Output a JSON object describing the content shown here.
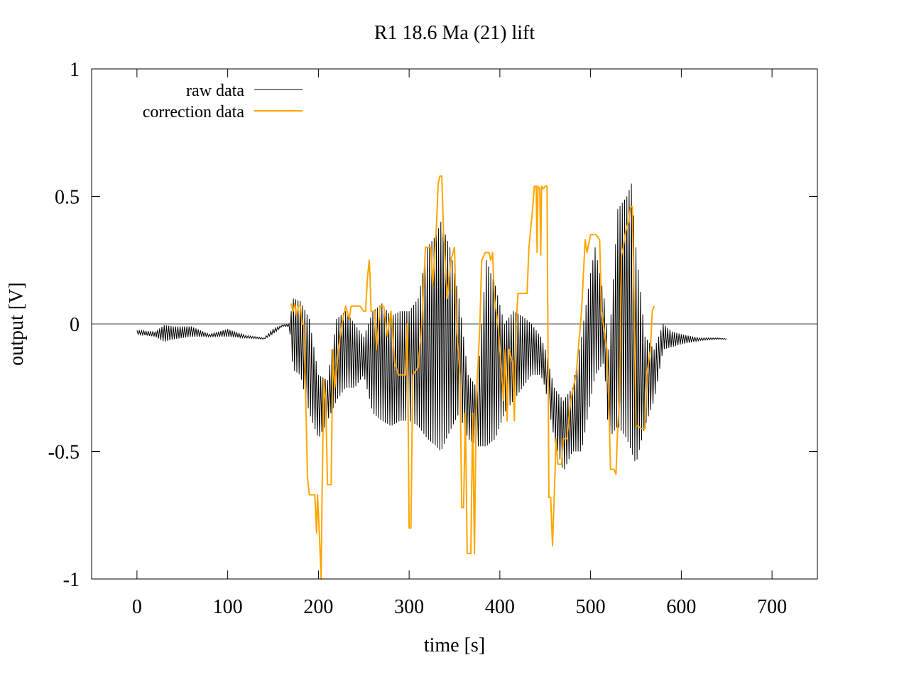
{
  "chart_data": {
    "type": "line",
    "title": "R1 18.6  Ma (21) lift",
    "xlabel": "time [s]",
    "ylabel": "output [V]",
    "xlim": [
      -50,
      750
    ],
    "ylim": [
      -1,
      1
    ],
    "xticks": [
      0,
      100,
      200,
      300,
      400,
      500,
      600,
      700
    ],
    "xtick_labels": [
      "0",
      "100",
      "200",
      "300",
      "400",
      "500",
      "600",
      "700"
    ],
    "yticks": [
      -1,
      -0.5,
      0,
      0.5,
      1
    ],
    "ytick_labels": [
      "-1",
      "-0.5",
      "0",
      "0.5",
      "1"
    ],
    "legend_position": "top-left",
    "zero_line": {
      "y": 0,
      "color": "#a0a0a0"
    },
    "series": [
      {
        "name": "raw data",
        "color": "#000000",
        "envelope": [
          [
            0,
            -0.025,
            -0.04
          ],
          [
            20,
            -0.03,
            -0.05
          ],
          [
            30,
            -0.005,
            -0.07
          ],
          [
            40,
            -0.01,
            -0.06
          ],
          [
            60,
            -0.01,
            -0.05
          ],
          [
            80,
            -0.04,
            -0.05
          ],
          [
            100,
            -0.02,
            -0.05
          ],
          [
            120,
            -0.045,
            -0.055
          ],
          [
            140,
            -0.055,
            -0.06
          ],
          [
            150,
            -0.02,
            -0.04
          ],
          [
            160,
            -0.005,
            -0.01
          ],
          [
            168,
            0.0,
            -0.01
          ],
          [
            172,
            0.1,
            -0.18
          ],
          [
            180,
            0.09,
            -0.2
          ],
          [
            190,
            0.02,
            -0.35
          ],
          [
            200,
            -0.2,
            -0.45
          ],
          [
            210,
            -0.22,
            -0.38
          ],
          [
            220,
            0.02,
            -0.3
          ],
          [
            230,
            0.05,
            -0.25
          ],
          [
            240,
            0.0,
            -0.25
          ],
          [
            250,
            -0.05,
            -0.2
          ],
          [
            260,
            0.05,
            -0.35
          ],
          [
            270,
            0.08,
            -0.38
          ],
          [
            280,
            0.03,
            -0.4
          ],
          [
            290,
            0.05,
            -0.38
          ],
          [
            300,
            0.05,
            -0.38
          ],
          [
            310,
            0.1,
            -0.4
          ],
          [
            320,
            0.3,
            -0.45
          ],
          [
            330,
            0.35,
            -0.48
          ],
          [
            335,
            0.4,
            -0.5
          ],
          [
            345,
            0.3,
            -0.42
          ],
          [
            355,
            0.1,
            -0.35
          ],
          [
            365,
            -0.2,
            -0.45
          ],
          [
            375,
            -0.25,
            -0.48
          ],
          [
            385,
            0.25,
            -0.48
          ],
          [
            395,
            0.15,
            -0.45
          ],
          [
            405,
            0.0,
            -0.35
          ],
          [
            415,
            0.05,
            -0.3
          ],
          [
            425,
            0.03,
            -0.25
          ],
          [
            435,
            0.0,
            -0.2
          ],
          [
            445,
            -0.05,
            -0.2
          ],
          [
            450,
            -0.1,
            -0.25
          ],
          [
            460,
            -0.25,
            -0.45
          ],
          [
            470,
            -0.3,
            -0.58
          ],
          [
            480,
            -0.25,
            -0.5
          ],
          [
            490,
            -0.05,
            -0.5
          ],
          [
            500,
            0.2,
            -0.3
          ],
          [
            505,
            0.3,
            -0.2
          ],
          [
            515,
            0.1,
            -0.15
          ],
          [
            520,
            -0.1,
            -0.45
          ],
          [
            530,
            0.45,
            -0.4
          ],
          [
            540,
            0.5,
            -0.45
          ],
          [
            545,
            0.55,
            -0.5
          ],
          [
            550,
            0.3,
            -0.55
          ],
          [
            560,
            -0.05,
            -0.4
          ],
          [
            570,
            -0.1,
            -0.3
          ],
          [
            580,
            0.0,
            -0.1
          ],
          [
            590,
            -0.03,
            -0.09
          ],
          [
            600,
            -0.04,
            -0.08
          ],
          [
            620,
            -0.055,
            -0.065
          ],
          [
            640,
            -0.055,
            -0.06
          ],
          [
            650,
            -0.058,
            -0.06
          ]
        ]
      },
      {
        "name": "correction data",
        "color": "#ffa500",
        "points": [
          [
            170,
            0.08
          ],
          [
            172,
            0.05
          ],
          [
            174,
            0.08
          ],
          [
            176,
            0.03
          ],
          [
            178,
            0.07
          ],
          [
            180,
            0.07
          ],
          [
            182,
            0.0
          ],
          [
            184,
            0.0
          ],
          [
            186,
            -0.3
          ],
          [
            188,
            -0.6
          ],
          [
            190,
            -0.67
          ],
          [
            196,
            -0.67
          ],
          [
            198,
            -0.82
          ],
          [
            199,
            -0.67
          ],
          [
            201,
            -0.82
          ],
          [
            203,
            -1.0
          ],
          [
            204,
            -0.67
          ],
          [
            206,
            -0.22
          ],
          [
            208,
            -0.3
          ],
          [
            210,
            -0.63
          ],
          [
            214,
            -0.63
          ],
          [
            216,
            -0.1
          ],
          [
            218,
            -0.25
          ],
          [
            222,
            -0.1
          ],
          [
            226,
            0.0
          ],
          [
            230,
            0.07
          ],
          [
            234,
            0.02
          ],
          [
            236,
            0.07
          ],
          [
            246,
            0.07
          ],
          [
            250,
            0.05
          ],
          [
            252,
            0.05
          ],
          [
            254,
            0.18
          ],
          [
            256,
            0.25
          ],
          [
            257,
            0.18
          ],
          [
            258,
            0.05
          ],
          [
            262,
            0.05
          ],
          [
            264,
            -0.1
          ],
          [
            268,
            0.07
          ],
          [
            272,
            0.07
          ],
          [
            276,
            -0.05
          ],
          [
            280,
            0.05
          ],
          [
            284,
            -0.15
          ],
          [
            288,
            -0.2
          ],
          [
            296,
            -0.2
          ],
          [
            298,
            0.0
          ],
          [
            300,
            -0.8
          ],
          [
            302,
            -0.8
          ],
          [
            304,
            -0.2
          ],
          [
            310,
            -0.17
          ],
          [
            314,
            0.0
          ],
          [
            318,
            0.3
          ],
          [
            324,
            0.3
          ],
          [
            326,
            0.15
          ],
          [
            330,
            0.38
          ],
          [
            332,
            0.55
          ],
          [
            334,
            0.58
          ],
          [
            336,
            0.58
          ],
          [
            338,
            0.35
          ],
          [
            342,
            0.1
          ],
          [
            346,
            0.25
          ],
          [
            350,
            0.3
          ],
          [
            352,
            0.0
          ],
          [
            356,
            -0.2
          ],
          [
            358,
            -0.72
          ],
          [
            360,
            -0.72
          ],
          [
            362,
            -0.35
          ],
          [
            364,
            -0.9
          ],
          [
            368,
            -0.9
          ],
          [
            370,
            -0.35
          ],
          [
            372,
            -0.9
          ],
          [
            374,
            -0.3
          ],
          [
            378,
            0.0
          ],
          [
            380,
            0.25
          ],
          [
            384,
            0.28
          ],
          [
            388,
            0.28
          ],
          [
            390,
            0.25
          ],
          [
            392,
            0.28
          ],
          [
            394,
            0.1
          ],
          [
            398,
            0.0
          ],
          [
            400,
            -0.1
          ],
          [
            404,
            -0.3
          ],
          [
            406,
            -0.1
          ],
          [
            408,
            -0.38
          ],
          [
            410,
            -0.1
          ],
          [
            414,
            -0.15
          ],
          [
            416,
            -0.38
          ],
          [
            418,
            0.0
          ],
          [
            420,
            0.12
          ],
          [
            430,
            0.12
          ],
          [
            432,
            0.3
          ],
          [
            436,
            0.45
          ],
          [
            438,
            0.54
          ],
          [
            440,
            0.54
          ],
          [
            441,
            0.28
          ],
          [
            442,
            0.54
          ],
          [
            444,
            0.53
          ],
          [
            445,
            0.27
          ],
          [
            446,
            0.54
          ],
          [
            448,
            0.53
          ],
          [
            450,
            0.54
          ],
          [
            452,
            0.54
          ],
          [
            454,
            -0.68
          ],
          [
            456,
            -0.68
          ],
          [
            458,
            -0.87
          ],
          [
            460,
            -0.67
          ],
          [
            462,
            -0.45
          ],
          [
            464,
            -0.55
          ],
          [
            468,
            -0.55
          ],
          [
            470,
            -0.45
          ],
          [
            474,
            -0.45
          ],
          [
            478,
            -0.3
          ],
          [
            484,
            -0.2
          ],
          [
            490,
            0.05
          ],
          [
            494,
            0.33
          ],
          [
            496,
            0.28
          ],
          [
            500,
            0.35
          ],
          [
            506,
            0.35
          ],
          [
            510,
            0.33
          ],
          [
            512,
            0.05
          ],
          [
            514,
            0.0
          ],
          [
            518,
            -0.1
          ],
          [
            520,
            -0.3
          ],
          [
            522,
            -0.57
          ],
          [
            526,
            -0.57
          ],
          [
            528,
            -0.59
          ],
          [
            530,
            -0.4
          ],
          [
            532,
            -0.3
          ],
          [
            534,
            0.27
          ],
          [
            536,
            0.3
          ],
          [
            538,
            0.35
          ],
          [
            540,
            0.38
          ],
          [
            542,
            0.4
          ],
          [
            544,
            0.46
          ],
          [
            546,
            0.46
          ],
          [
            548,
            0.1
          ],
          [
            550,
            -0.4
          ],
          [
            552,
            -0.4
          ],
          [
            556,
            -0.41
          ],
          [
            560,
            -0.41
          ],
          [
            562,
            -0.2
          ],
          [
            566,
            -0.1
          ],
          [
            568,
            0.05
          ],
          [
            570,
            0.07
          ]
        ]
      }
    ]
  }
}
